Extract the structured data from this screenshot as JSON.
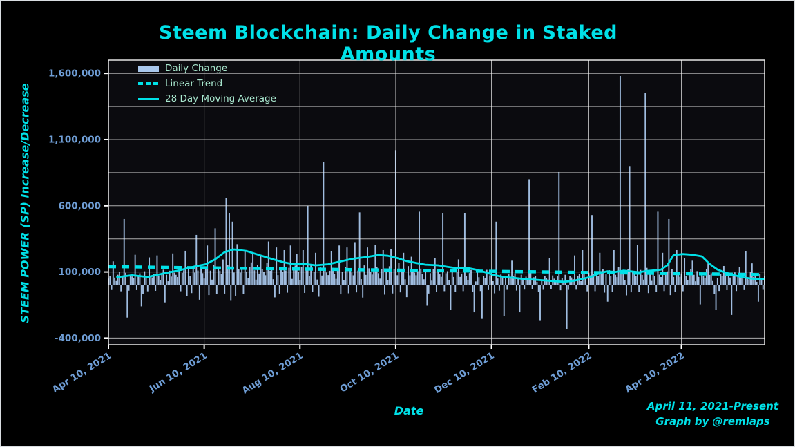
{
  "colors": {
    "background": "#000000",
    "plot_bg": "#0b0b0f",
    "accent": "#00e1e8",
    "bar": "#a9c7ec",
    "tick_label": "#6f9ed6",
    "legend_text": "#a9e8cf",
    "grid": "#f2f2f2",
    "spine": "#ffffff"
  },
  "chart_data": {
    "type": "bar",
    "title": "Steem Blockchain: Daily Change in Staked Amounts",
    "xlabel": "Date",
    "ylabel": "STEEM POWER (SP) Increase/Decrease",
    "annotations": [
      "April 11, 2021-Present",
      "Graph by @remlaps"
    ],
    "legend": [
      {
        "label": "Daily Change",
        "style": "bar"
      },
      {
        "label": "Linear Trend",
        "style": "dashed"
      },
      {
        "label": "28 Day Moving Average",
        "style": "solid"
      }
    ],
    "grid": "on",
    "legend_position": "upper-left",
    "x_axis": {
      "start_date": "2021-04-10",
      "days": 419,
      "ticks": [
        {
          "day": 0,
          "label": "Apr 10, 2021"
        },
        {
          "day": 61,
          "label": "Jun 10, 2021"
        },
        {
          "day": 122,
          "label": "Aug 10, 2021"
        },
        {
          "day": 183,
          "label": "Oct 10, 2021"
        },
        {
          "day": 244,
          "label": "Dec 10, 2021"
        },
        {
          "day": 306,
          "label": "Feb 10, 2022"
        },
        {
          "day": 365,
          "label": "Apr 10, 2022"
        }
      ]
    },
    "y_axis": {
      "min": -450000,
      "max": 1700000,
      "grid_min": -400000,
      "grid_step": 250000,
      "ticks": [
        {
          "value": 1600000,
          "label": "1,600,000"
        },
        {
          "value": 1100000,
          "label": "1,100,000"
        },
        {
          "value": 600000,
          "label": "600,000"
        },
        {
          "value": 100000,
          "label": "100,000"
        },
        {
          "value": -400000,
          "label": "-400,000"
        }
      ]
    },
    "trend": {
      "start_value": 140000,
      "end_value": 80000
    },
    "moving_average": [
      [
        5,
        60000
      ],
      [
        15,
        75000
      ],
      [
        25,
        62000
      ],
      [
        35,
        88000
      ],
      [
        45,
        112000
      ],
      [
        55,
        142000
      ],
      [
        62,
        158000
      ],
      [
        68,
        195000
      ],
      [
        74,
        250000
      ],
      [
        80,
        270000
      ],
      [
        88,
        258000
      ],
      [
        96,
        228000
      ],
      [
        105,
        195000
      ],
      [
        112,
        172000
      ],
      [
        118,
        158000
      ],
      [
        124,
        162000
      ],
      [
        132,
        150000
      ],
      [
        140,
        158000
      ],
      [
        148,
        180000
      ],
      [
        156,
        200000
      ],
      [
        164,
        212000
      ],
      [
        172,
        228000
      ],
      [
        178,
        222000
      ],
      [
        184,
        205000
      ],
      [
        190,
        182000
      ],
      [
        196,
        168000
      ],
      [
        202,
        155000
      ],
      [
        210,
        150000
      ],
      [
        216,
        138000
      ],
      [
        222,
        128000
      ],
      [
        228,
        132000
      ],
      [
        234,
        118000
      ],
      [
        240,
        98000
      ],
      [
        246,
        75000
      ],
      [
        252,
        62000
      ],
      [
        258,
        55000
      ],
      [
        264,
        48000
      ],
      [
        270,
        42000
      ],
      [
        278,
        36000
      ],
      [
        284,
        30000
      ],
      [
        290,
        26000
      ],
      [
        296,
        32000
      ],
      [
        302,
        48000
      ],
      [
        308,
        65000
      ],
      [
        313,
        92000
      ],
      [
        318,
        105000
      ],
      [
        323,
        100000
      ],
      [
        328,
        110000
      ],
      [
        333,
        104000
      ],
      [
        338,
        98000
      ],
      [
        343,
        108000
      ],
      [
        348,
        112000
      ],
      [
        352,
        118000
      ],
      [
        356,
        150000
      ],
      [
        360,
        228000
      ],
      [
        366,
        235000
      ],
      [
        372,
        230000
      ],
      [
        378,
        218000
      ],
      [
        383,
        160000
      ],
      [
        388,
        118000
      ],
      [
        393,
        96000
      ],
      [
        398,
        78000
      ],
      [
        403,
        62000
      ],
      [
        408,
        52000
      ],
      [
        413,
        46000
      ],
      [
        418,
        48000
      ]
    ],
    "bars": {
      "unit": 1000,
      "pattern": [
        62,
        88,
        -45,
        105,
        70,
        38,
        95,
        120,
        -55,
        80,
        30,
        110,
        65,
        -48,
        92,
        75,
        58,
        130,
        -42,
        85,
        100,
        35,
        -72,
        115,
        60,
        -50,
        98,
        78
      ],
      "envelope": [
        [
          0,
          0.8
        ],
        [
          40,
          1.0
        ],
        [
          60,
          1.3
        ],
        [
          80,
          1.6
        ],
        [
          100,
          1.3
        ],
        [
          130,
          1.2
        ],
        [
          160,
          1.3
        ],
        [
          185,
          1.3
        ],
        [
          210,
          1.1
        ],
        [
          240,
          0.9
        ],
        [
          265,
          0.7
        ],
        [
          290,
          0.7
        ],
        [
          310,
          1.0
        ],
        [
          340,
          1.1
        ],
        [
          370,
          1.0
        ],
        [
          400,
          0.8
        ],
        [
          418,
          0.7
        ]
      ],
      "spikes": {
        "3": 180000,
        "10": 500000,
        "12": -245000,
        "17": 230000,
        "21": -160000,
        "26": 210000,
        "31": 225000,
        "36": -130000,
        "41": 240000,
        "49": 260000,
        "56": 380000,
        "58": -110000,
        "63": 300000,
        "68": 430000,
        "75": 660000,
        "77": 545000,
        "79": 480000,
        "82": 310000,
        "87": 255000,
        "92": 240000,
        "97": 225000,
        "102": 330000,
        "107": 285000,
        "112": 265000,
        "116": 300000,
        "120": 235000,
        "124": 265000,
        "127": 600000,
        "132": 245000,
        "137": 930000,
        "142": 255000,
        "147": 300000,
        "152": 285000,
        "157": 320000,
        "160": 550000,
        "165": 285000,
        "170": 305000,
        "175": 265000,
        "180": 270000,
        "183": 1020000,
        "188": 245000,
        "193": 215000,
        "198": 555000,
        "203": -155000,
        "208": 205000,
        "213": 545000,
        "218": -185000,
        "223": 195000,
        "227": 545000,
        "233": -205000,
        "238": -255000,
        "247": 480000,
        "252": -235000,
        "257": 185000,
        "262": -205000,
        "268": 800000,
        "275": -265000,
        "281": 205000,
        "287": 855000,
        "292": -330000,
        "297": 225000,
        "302": 265000,
        "308": 530000,
        "313": 245000,
        "318": -125000,
        "322": 265000,
        "326": 1580000,
        "332": 900000,
        "337": 305000,
        "342": 1450000,
        "350": 555000,
        "353": 245000,
        "357": 500000,
        "362": 265000,
        "367": 205000,
        "372": 185000,
        "377": -145000,
        "382": 165000,
        "387": -185000,
        "392": 145000,
        "397": -225000,
        "402": 135000,
        "406": 255000,
        "410": 165000,
        "414": -125000
      }
    }
  }
}
